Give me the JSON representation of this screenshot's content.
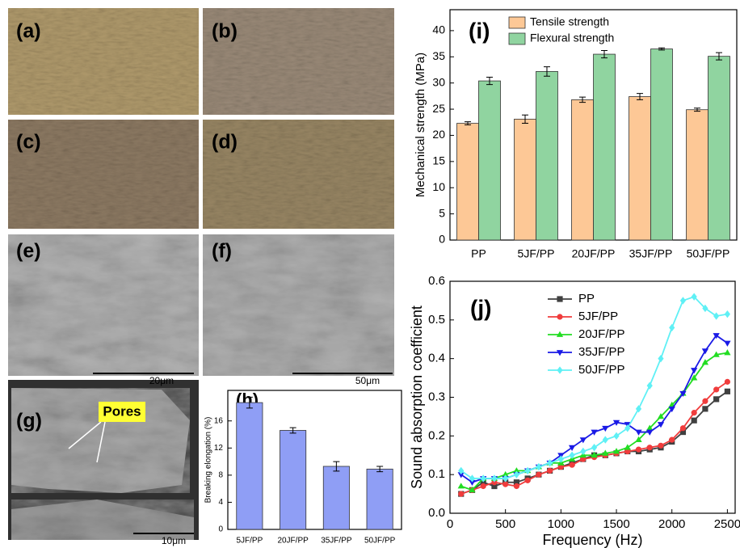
{
  "images": [
    {
      "label": "(a)"
    },
    {
      "label": "(b)"
    },
    {
      "label": "(c)"
    },
    {
      "label": "(d)"
    },
    {
      "label": "(e)",
      "scale_bar": "20μm"
    },
    {
      "label": "(f)",
      "scale_bar": "50μm"
    },
    {
      "label": "(g)",
      "scale_bar": "10μm",
      "annotation": "Pores"
    }
  ],
  "chart_data": [
    {
      "type": "bar",
      "panel_label": "(h)",
      "ylabel": "Breaking elongation (%)",
      "categories": [
        "5JF/PP",
        "20JF/PP",
        "35JF/PP",
        "50JF/PP"
      ],
      "values": [
        18.7,
        14.6,
        9.3,
        8.9
      ],
      "errors": [
        0.8,
        0.4,
        0.7,
        0.4
      ],
      "color": "#8f9ef5",
      "ylim": [
        0,
        20.5
      ],
      "yticks": [
        0,
        4,
        8,
        12,
        16
      ]
    },
    {
      "type": "bar",
      "panel_label": "(i)",
      "ylabel": "Mechanical strength (MPa)",
      "categories": [
        "PP",
        "5JF/PP",
        "20JF/PP",
        "35JF/PP",
        "50JF/PP"
      ],
      "series": [
        {
          "name": "Tensile strength",
          "color": "#fdc896",
          "values": [
            22.3,
            23.1,
            26.8,
            27.4,
            24.9
          ],
          "errors": [
            0.3,
            0.8,
            0.5,
            0.6,
            0.3
          ]
        },
        {
          "name": "Flexural strength",
          "color": "#90d4a0",
          "values": [
            30.4,
            32.2,
            35.5,
            36.5,
            35.1
          ],
          "errors": [
            0.7,
            0.9,
            0.7,
            0.2,
            0.7
          ]
        }
      ],
      "ylim": [
        0,
        44
      ],
      "yticks": [
        0,
        5,
        10,
        15,
        20,
        25,
        30,
        35,
        40
      ]
    },
    {
      "type": "line",
      "panel_label": "(j)",
      "xlabel": "Frequency (Hz)",
      "ylabel": "Sound absorption coefficient",
      "x": [
        100,
        200,
        300,
        400,
        500,
        600,
        700,
        800,
        900,
        1000,
        1100,
        1200,
        1300,
        1400,
        1500,
        1600,
        1700,
        1800,
        1900,
        2000,
        2100,
        2200,
        2300,
        2400,
        2500
      ],
      "series": [
        {
          "name": "PP",
          "color": "#404040",
          "marker": "square",
          "values": [
            0.05,
            0.06,
            0.08,
            0.07,
            0.08,
            0.08,
            0.09,
            0.1,
            0.11,
            0.12,
            0.13,
            0.14,
            0.15,
            0.15,
            0.155,
            0.16,
            0.16,
            0.165,
            0.17,
            0.185,
            0.21,
            0.24,
            0.27,
            0.295,
            0.315
          ]
        },
        {
          "name": "5JF/PP",
          "color": "#f03c3c",
          "marker": "circle",
          "values": [
            0.05,
            0.06,
            0.07,
            0.08,
            0.075,
            0.07,
            0.085,
            0.1,
            0.11,
            0.12,
            0.125,
            0.14,
            0.145,
            0.15,
            0.155,
            0.16,
            0.165,
            0.17,
            0.175,
            0.19,
            0.22,
            0.26,
            0.29,
            0.32,
            0.34
          ]
        },
        {
          "name": "20JF/PP",
          "color": "#22dd22",
          "marker": "triangle",
          "values": [
            0.07,
            0.06,
            0.09,
            0.09,
            0.1,
            0.11,
            0.11,
            0.12,
            0.13,
            0.13,
            0.14,
            0.15,
            0.15,
            0.155,
            0.16,
            0.17,
            0.19,
            0.22,
            0.25,
            0.28,
            0.31,
            0.35,
            0.39,
            0.41,
            0.415
          ]
        },
        {
          "name": "35JF/PP",
          "color": "#1a1ae6",
          "marker": "down-triangle",
          "values": [
            0.1,
            0.08,
            0.09,
            0.09,
            0.09,
            0.1,
            0.11,
            0.12,
            0.13,
            0.15,
            0.17,
            0.19,
            0.21,
            0.22,
            0.235,
            0.23,
            0.21,
            0.21,
            0.23,
            0.27,
            0.31,
            0.37,
            0.42,
            0.46,
            0.44
          ]
        },
        {
          "name": "50JF/PP",
          "color": "#5ff0f5",
          "marker": "diamond",
          "values": [
            0.11,
            0.09,
            0.09,
            0.09,
            0.09,
            0.1,
            0.11,
            0.12,
            0.13,
            0.14,
            0.15,
            0.16,
            0.17,
            0.19,
            0.2,
            0.22,
            0.27,
            0.33,
            0.4,
            0.48,
            0.55,
            0.56,
            0.53,
            0.51,
            0.515
          ]
        }
      ],
      "xlim": [
        0,
        2570
      ],
      "xticks": [
        0,
        500,
        1000,
        1500,
        2000,
        2500
      ],
      "ylim": [
        0,
        0.6
      ],
      "yticks": [
        {
          "value": 0,
          "label": "0.0"
        },
        0.1,
        0.2,
        0.3,
        0.4,
        0.5,
        0.6
      ]
    }
  ]
}
